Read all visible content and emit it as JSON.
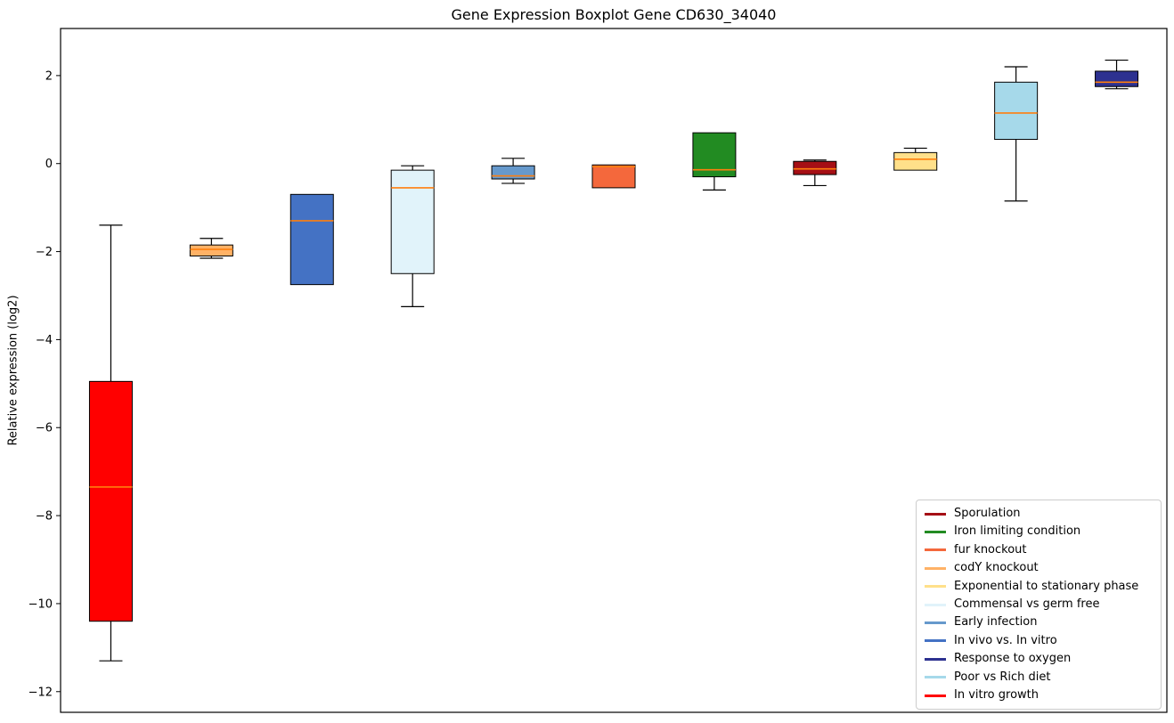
{
  "title": "Gene Expression Boxplot Gene CD630_34040",
  "ylabel": "Relative expression (log2)",
  "chart_data": {
    "type": "boxplot",
    "title": "Gene Expression Boxplot Gene CD630_34040",
    "xlabel": "",
    "ylabel": "Relative expression (log2)",
    "ylim": [
      -12.47,
      3.07
    ],
    "yticks": [
      2,
      0,
      -2,
      -4,
      -6,
      -8,
      -10,
      -12
    ],
    "grid": false,
    "median_color": "#ff7f0e",
    "whisker_color": "#000000",
    "box_edge_color": "#000000",
    "legend_position": "lower right",
    "series": [
      {
        "name": "In vitro growth",
        "color": "#ff0000",
        "whisker_low": -11.3,
        "q1": -10.4,
        "median": -7.35,
        "q3": -4.95,
        "whisker_high": -1.4
      },
      {
        "name": "codY knockout",
        "color": "#ffb266",
        "whisker_low": -2.15,
        "q1": -2.1,
        "median": -1.95,
        "q3": -1.85,
        "whisker_high": -1.7
      },
      {
        "name": "In vivo vs. In vitro",
        "color": "#4472c4",
        "whisker_low": -2.75,
        "q1": -2.75,
        "median": -1.3,
        "q3": -0.7,
        "whisker_high": -0.7
      },
      {
        "name": "Commensal vs germ free",
        "color": "#e1f3fa",
        "whisker_low": -3.25,
        "q1": -2.5,
        "median": -0.55,
        "q3": -0.15,
        "whisker_high": -0.05
      },
      {
        "name": "Early infection",
        "color": "#6699cc",
        "whisker_low": -0.45,
        "q1": -0.35,
        "median": -0.28,
        "q3": -0.05,
        "whisker_high": 0.12
      },
      {
        "name": "fur knockout",
        "color": "#f4683c",
        "whisker_low": -0.55,
        "q1": -0.55,
        "median": -0.07,
        "q3": -0.03,
        "whisker_high": -0.03
      },
      {
        "name": "Iron limiting condition",
        "color": "#228B22",
        "whisker_low": -0.6,
        "q1": -0.3,
        "median": -0.14,
        "q3": 0.7,
        "whisker_high": 0.7
      },
      {
        "name": "Sporulation",
        "color": "#a50f15",
        "whisker_low": -0.5,
        "q1": -0.25,
        "median": -0.12,
        "q3": 0.05,
        "whisker_high": 0.08
      },
      {
        "name": "Exponential to stationary phase",
        "color": "#ffe08a",
        "whisker_low": -0.15,
        "q1": -0.15,
        "median": 0.1,
        "q3": 0.25,
        "whisker_high": 0.35
      },
      {
        "name": "Poor vs Rich diet",
        "color": "#a6d9ea",
        "whisker_low": -0.85,
        "q1": 0.55,
        "median": 1.15,
        "q3": 1.85,
        "whisker_high": 2.2
      },
      {
        "name": "Response to oxygen",
        "color": "#2d3190",
        "whisker_low": 1.7,
        "q1": 1.75,
        "median": 1.85,
        "q3": 2.1,
        "whisker_high": 2.35
      }
    ],
    "legend": [
      {
        "label": "Sporulation",
        "color": "#a50f15"
      },
      {
        "label": "Iron limiting condition",
        "color": "#228B22"
      },
      {
        "label": "fur knockout",
        "color": "#f4683c"
      },
      {
        "label": "codY knockout",
        "color": "#ffb266"
      },
      {
        "label": "Exponential to stationary phase",
        "color": "#ffe08a"
      },
      {
        "label": "Commensal vs germ free",
        "color": "#e1f3fa"
      },
      {
        "label": "Early infection",
        "color": "#6699cc"
      },
      {
        "label": "In vivo vs. In vitro",
        "color": "#4472c4"
      },
      {
        "label": "Response to oxygen",
        "color": "#2d3190"
      },
      {
        "label": "Poor vs Rich diet",
        "color": "#a6d9ea"
      },
      {
        "label": "In vitro growth",
        "color": "#ff0000"
      }
    ]
  }
}
